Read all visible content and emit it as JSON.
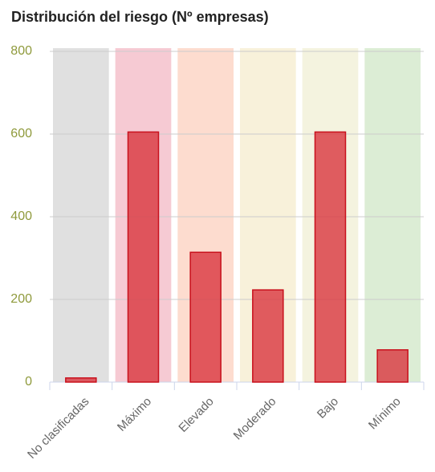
{
  "chart_data": {
    "type": "bar",
    "title": "Distribución del riesgo (Nº empresas)",
    "categories": [
      "No clasificadas",
      "Máximo",
      "Elevado",
      "Moderado",
      "Bajo",
      "Mínimo"
    ],
    "values": [
      10,
      605,
      314,
      223,
      605,
      78
    ],
    "color": "#d9363e",
    "band_colors": [
      "#e0e0e0",
      "#f6cad3",
      "#fddccf",
      "#f8f1da",
      "#f4f3df",
      "#dcedd5"
    ],
    "ylim": [
      0,
      800
    ],
    "yticks": [
      0,
      200,
      400,
      600,
      800
    ],
    "grid": true
  }
}
